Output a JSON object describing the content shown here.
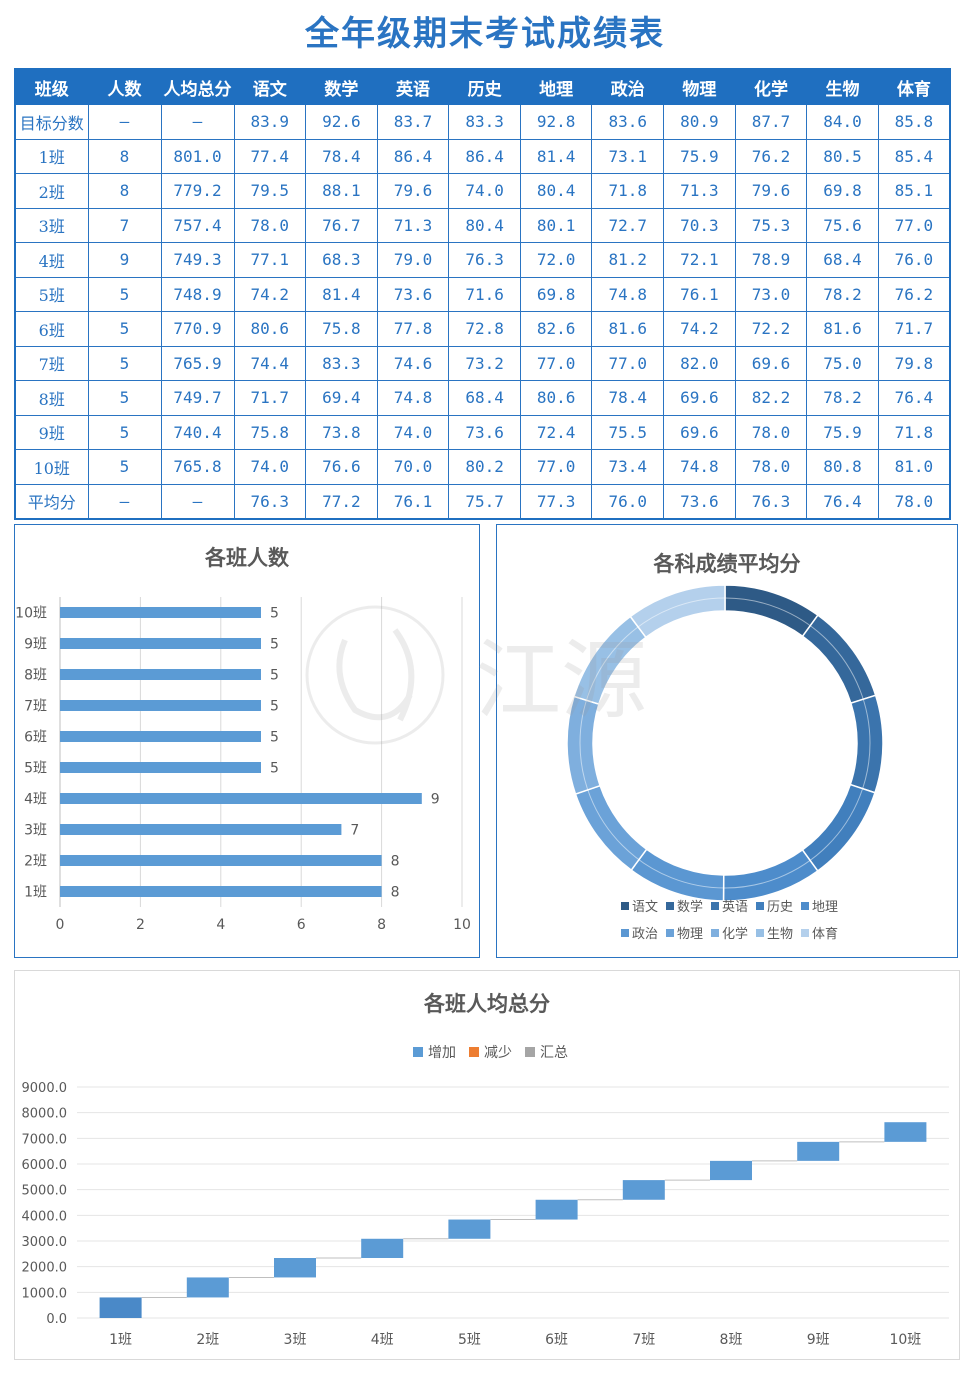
{
  "title": "全年级期末考试成绩表",
  "table": {
    "headers": [
      "班级",
      "人数",
      "人均总分",
      "语文",
      "数学",
      "英语",
      "历史",
      "地理",
      "政治",
      "物理",
      "化学",
      "生物",
      "体育"
    ],
    "rows": [
      [
        "目标分数",
        "—",
        "—",
        "83.9",
        "92.6",
        "83.7",
        "83.3",
        "92.8",
        "83.6",
        "80.9",
        "87.7",
        "84.0",
        "85.8"
      ],
      [
        "1班",
        "8",
        "801.0",
        "77.4",
        "78.4",
        "86.4",
        "86.4",
        "81.4",
        "73.1",
        "75.9",
        "76.2",
        "80.5",
        "85.4"
      ],
      [
        "2班",
        "8",
        "779.2",
        "79.5",
        "88.1",
        "79.6",
        "74.0",
        "80.4",
        "71.8",
        "71.3",
        "79.6",
        "69.8",
        "85.1"
      ],
      [
        "3班",
        "7",
        "757.4",
        "78.0",
        "76.7",
        "71.3",
        "80.4",
        "80.1",
        "72.7",
        "70.3",
        "75.3",
        "75.6",
        "77.0"
      ],
      [
        "4班",
        "9",
        "749.3",
        "77.1",
        "68.3",
        "79.0",
        "76.3",
        "72.0",
        "81.2",
        "72.1",
        "78.9",
        "68.4",
        "76.0"
      ],
      [
        "5班",
        "5",
        "748.9",
        "74.2",
        "81.4",
        "73.6",
        "71.6",
        "69.8",
        "74.8",
        "76.1",
        "73.0",
        "78.2",
        "76.2"
      ],
      [
        "6班",
        "5",
        "770.9",
        "80.6",
        "75.8",
        "77.8",
        "72.8",
        "82.6",
        "81.6",
        "74.2",
        "72.2",
        "81.6",
        "71.7"
      ],
      [
        "7班",
        "5",
        "765.9",
        "74.4",
        "83.3",
        "74.6",
        "73.2",
        "77.0",
        "77.0",
        "82.0",
        "69.6",
        "75.0",
        "79.8"
      ],
      [
        "8班",
        "5",
        "749.7",
        "71.7",
        "69.4",
        "74.8",
        "68.4",
        "80.6",
        "78.4",
        "69.6",
        "82.2",
        "78.2",
        "76.4"
      ],
      [
        "9班",
        "5",
        "740.4",
        "75.8",
        "73.8",
        "74.0",
        "73.6",
        "72.4",
        "75.5",
        "69.6",
        "78.0",
        "75.9",
        "71.8"
      ],
      [
        "10班",
        "5",
        "765.8",
        "74.0",
        "76.6",
        "70.0",
        "80.2",
        "77.0",
        "73.4",
        "74.8",
        "78.0",
        "80.8",
        "81.0"
      ],
      [
        "平均分",
        "—",
        "—",
        "76.3",
        "77.2",
        "76.1",
        "75.7",
        "77.3",
        "76.0",
        "73.6",
        "76.3",
        "76.4",
        "78.0"
      ]
    ]
  },
  "watermark": "江源",
  "chart_data": [
    {
      "type": "bar",
      "orientation": "horizontal",
      "title": "各班人数",
      "categories": [
        "1班",
        "2班",
        "3班",
        "4班",
        "5班",
        "6班",
        "7班",
        "8班",
        "9班",
        "10班"
      ],
      "values": [
        8,
        8,
        7,
        9,
        5,
        5,
        5,
        5,
        5,
        5
      ],
      "xlim": [
        0,
        10
      ],
      "ticks": [
        "0",
        "2",
        "4",
        "6",
        "8",
        "10"
      ],
      "grid": true,
      "color": "#5b9bd5"
    },
    {
      "type": "pie",
      "variant": "doughnut",
      "title": "各科成绩平均分",
      "categories": [
        "语文",
        "数学",
        "英语",
        "历史",
        "地理",
        "政治",
        "物理",
        "化学",
        "生物",
        "体育"
      ],
      "values": [
        76.3,
        77.2,
        76.1,
        75.7,
        77.3,
        76.0,
        73.6,
        76.3,
        76.4,
        78.0
      ],
      "colors": [
        "#2e5a86",
        "#35689b",
        "#3b74ad",
        "#417fbd",
        "#4d8ccb",
        "#5b97d2",
        "#6ba2d8",
        "#7fafde",
        "#98c0e5",
        "#b4d0ec"
      ],
      "legend": "bottom"
    },
    {
      "type": "bar",
      "variant": "waterfall",
      "title": "各班人均总分",
      "categories": [
        "1班",
        "2班",
        "3班",
        "4班",
        "5班",
        "6班",
        "7班",
        "8班",
        "9班",
        "10班"
      ],
      "values": [
        801.0,
        779.2,
        757.4,
        749.3,
        748.9,
        770.9,
        765.9,
        749.7,
        740.4,
        765.8
      ],
      "legend": [
        "增加",
        "减少",
        "汇总"
      ],
      "legend_colors": [
        "#5b9bd5",
        "#ed7d31",
        "#a5a5a5"
      ],
      "ylim": [
        0,
        9000
      ],
      "yticks": [
        "0.0",
        "1000.0",
        "2000.0",
        "3000.0",
        "4000.0",
        "5000.0",
        "6000.0",
        "7000.0",
        "8000.0",
        "9000.0"
      ],
      "grid": true
    }
  ]
}
